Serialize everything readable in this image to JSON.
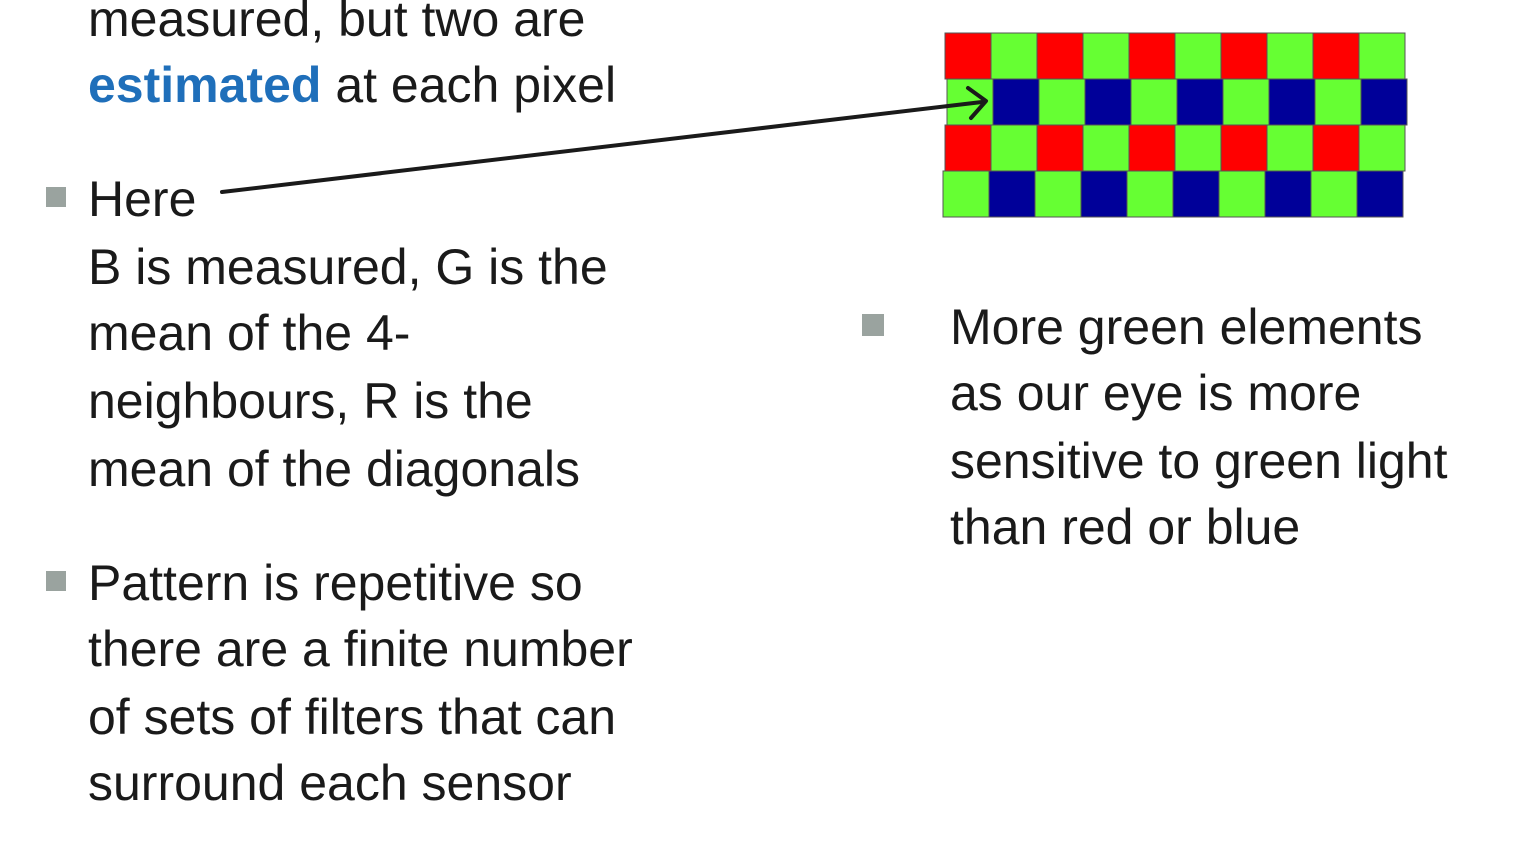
{
  "left_column": {
    "top_fragment": {
      "line1": "measured, but two are",
      "line2_emph": "estimated",
      "line2_rest": " at each pixel"
    },
    "here_bullet": {
      "lines": [
        "Here",
        "B is measured, G is the",
        "mean of the 4-",
        "neighbours, R is the",
        "mean of the diagonals"
      ]
    },
    "pattern_bullet": {
      "lines": [
        "Pattern is repetitive so",
        "there are a finite number",
        "of sets of filters that can",
        "surround each sensor"
      ]
    }
  },
  "right_column": {
    "green_bullet": {
      "lines": [
        "More green elements",
        "as our eye is more",
        "sensitive to green light",
        "than red or blue"
      ]
    }
  },
  "bayer_mosaic": {
    "colors": {
      "R": "#ff0000",
      "G": "#66ff33",
      "B": "#000099"
    },
    "rows": [
      [
        "R",
        "G",
        "R",
        "G",
        "R",
        "G",
        "R",
        "G",
        "R",
        "G"
      ],
      [
        "G",
        "B",
        "G",
        "B",
        "G",
        "B",
        "G",
        "B",
        "G",
        "B"
      ],
      [
        "R",
        "G",
        "R",
        "G",
        "R",
        "G",
        "R",
        "G",
        "R",
        "G"
      ],
      [
        "G",
        "B",
        "G",
        "B",
        "G",
        "B",
        "G",
        "B",
        "G",
        "B"
      ]
    ]
  }
}
